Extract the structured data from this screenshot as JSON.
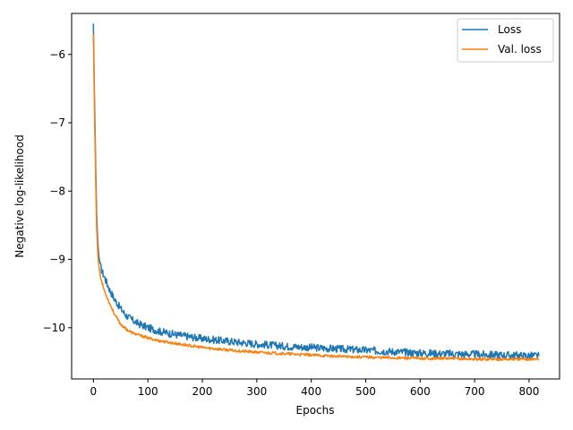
{
  "chart_data": {
    "type": "line",
    "xlabel": "Epochs",
    "ylabel": "Negative log-likelihood",
    "xlim": [
      -40,
      856
    ],
    "ylim": [
      -10.75,
      -5.4
    ],
    "xticks": [
      0,
      100,
      200,
      300,
      400,
      500,
      600,
      700,
      800
    ],
    "yticks": [
      -6,
      -7,
      -8,
      -9,
      -10
    ],
    "ytick_labels": [
      "−6",
      "−7",
      "−8",
      "−9",
      "−10"
    ],
    "grid": false,
    "legend_position": "top-right",
    "series": [
      {
        "name": "Loss",
        "color": "#1f77b4",
        "x": [
          0,
          2,
          4,
          6,
          8,
          10,
          13,
          16,
          20,
          25,
          30,
          40,
          50,
          60,
          70,
          80,
          100,
          120,
          150,
          200,
          250,
          300,
          350,
          400,
          450,
          500,
          550,
          600,
          650,
          700,
          750,
          800,
          818
        ],
        "y": [
          -5.55,
          -6.6,
          -7.6,
          -8.35,
          -8.75,
          -8.95,
          -9.1,
          -9.18,
          -9.25,
          -9.35,
          -9.45,
          -9.6,
          -9.72,
          -9.82,
          -9.88,
          -9.93,
          -10.0,
          -10.05,
          -10.1,
          -10.16,
          -10.2,
          -10.24,
          -10.27,
          -10.29,
          -10.31,
          -10.33,
          -10.35,
          -10.37,
          -10.38,
          -10.39,
          -10.4,
          -10.41,
          -10.41
        ]
      },
      {
        "name": "Val. loss",
        "color": "#ff7f0e",
        "x": [
          0,
          2,
          4,
          6,
          8,
          10,
          13,
          16,
          20,
          25,
          30,
          40,
          50,
          60,
          70,
          80,
          100,
          120,
          150,
          200,
          250,
          300,
          350,
          400,
          450,
          500,
          550,
          600,
          650,
          700,
          750,
          800,
          818
        ],
        "y": [
          -5.7,
          -6.8,
          -7.8,
          -8.55,
          -8.9,
          -9.1,
          -9.25,
          -9.35,
          -9.45,
          -9.55,
          -9.65,
          -9.82,
          -9.95,
          -10.02,
          -10.07,
          -10.1,
          -10.15,
          -10.19,
          -10.23,
          -10.29,
          -10.33,
          -10.36,
          -10.38,
          -10.4,
          -10.42,
          -10.43,
          -10.44,
          -10.45,
          -10.45,
          -10.46,
          -10.46,
          -10.46,
          -10.46
        ]
      }
    ]
  }
}
